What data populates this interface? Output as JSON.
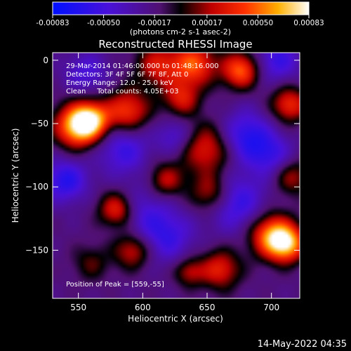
{
  "chart_data": {
    "type": "heatmap",
    "title": "Reconstructed RHESSI Image",
    "xlabel": "Heliocentric X (arcsec)",
    "ylabel": "Heliocentric Y (arcsec)",
    "xlim": [
      530,
      722
    ],
    "ylim": [
      -188,
      6
    ],
    "xticks": [
      550,
      600,
      650,
      700
    ],
    "yticks": [
      0,
      -50,
      -100,
      -150
    ],
    "colorbar": {
      "ticks": [
        "-0.00083",
        "-0.00050",
        "-0.00017",
        "0.00017",
        "0.00050",
        "0.00083"
      ],
      "range": [
        -0.00083,
        0.00083
      ],
      "units": "(photons cm<sup>-2</sup> s<sup>-1</sup> asec<sup>-2</sup>)",
      "units_plain": "(photons cm-2 s-1 asec-2)"
    },
    "annotations": [
      "29-Mar-2014 01:46:00.000 to 01:48:16.000",
      "Detectors: 3F 4F 5F 6F 7F 8F, Att 0",
      "Energy Range: 12.0 - 25.0 keV",
      "Clean     Total counts: 4.05E+03"
    ],
    "peak_label": "Position of Peak = [559,-55]",
    "blobs": [
      {
        "x": 549,
        "y": -52,
        "v": 1.0,
        "s": 12
      },
      {
        "x": 560,
        "y": -47,
        "v": 0.85,
        "s": 10
      },
      {
        "x": 588,
        "y": -40,
        "v": 0.7,
        "s": 12
      },
      {
        "x": 612,
        "y": -4,
        "v": 0.55,
        "s": 12
      },
      {
        "x": 640,
        "y": -3,
        "v": 0.75,
        "s": 12
      },
      {
        "x": 630,
        "y": -30,
        "v": 0.55,
        "s": 10
      },
      {
        "x": 650,
        "y": -70,
        "v": 0.6,
        "s": 14
      },
      {
        "x": 653,
        "y": -105,
        "v": 0.55,
        "s": 11
      },
      {
        "x": 676,
        "y": -8,
        "v": 0.8,
        "s": 10
      },
      {
        "x": 714,
        "y": -35,
        "v": 0.65,
        "s": 10
      },
      {
        "x": 716,
        "y": -92,
        "v": 0.45,
        "s": 10
      },
      {
        "x": 580,
        "y": -118,
        "v": 0.7,
        "s": 10
      },
      {
        "x": 592,
        "y": -150,
        "v": 0.55,
        "s": 10
      },
      {
        "x": 618,
        "y": -95,
        "v": 0.5,
        "s": 10
      },
      {
        "x": 700,
        "y": -138,
        "v": 0.85,
        "s": 12
      },
      {
        "x": 712,
        "y": -145,
        "v": 0.9,
        "s": 10
      },
      {
        "x": 660,
        "y": -165,
        "v": 0.6,
        "s": 11
      },
      {
        "x": 636,
        "y": -167,
        "v": 0.45,
        "s": 8
      },
      {
        "x": 560,
        "y": -160,
        "v": 0.3,
        "s": 10
      },
      {
        "x": 540,
        "y": -95,
        "v": -0.55,
        "s": 12
      },
      {
        "x": 585,
        "y": -70,
        "v": -0.45,
        "s": 14
      },
      {
        "x": 600,
        "y": -120,
        "v": -0.35,
        "s": 16
      },
      {
        "x": 680,
        "y": -60,
        "v": -0.55,
        "s": 14
      },
      {
        "x": 672,
        "y": -112,
        "v": -0.5,
        "s": 16
      },
      {
        "x": 620,
        "y": -140,
        "v": -0.4,
        "s": 14
      },
      {
        "x": 556,
        "y": -10,
        "v": -0.35,
        "s": 12
      },
      {
        "x": 700,
        "y": -75,
        "v": -0.4,
        "s": 12
      },
      {
        "x": 705,
        "y": 0,
        "v": -0.45,
        "s": 12
      },
      {
        "x": 625,
        "y": -60,
        "v": -0.35,
        "s": 10
      }
    ]
  },
  "footer": {
    "date": "14-May-2022 04:35"
  }
}
